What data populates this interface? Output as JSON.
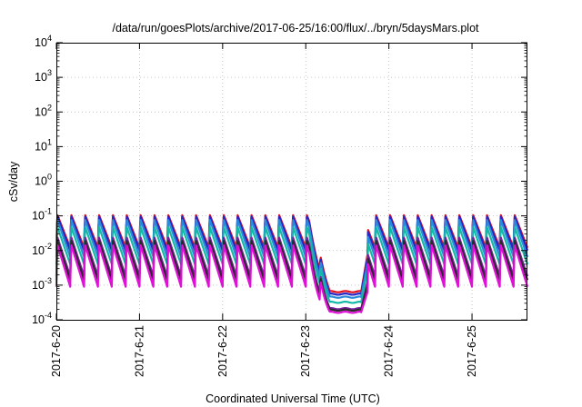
{
  "chart_data": {
    "type": "line",
    "title": "/data/run/goesPlots/archive/2017-06-25/16:00/flux/../bryn/5daysMars.plot",
    "xlabel": "Coordinated Universal Time (UTC)",
    "ylabel": "cSv/day",
    "y_scale": "log",
    "ylim": [
      0.0001,
      10000
    ],
    "y_ticks": [
      {
        "value": 0.0001,
        "base": "10",
        "exp": "-4"
      },
      {
        "value": 0.001,
        "base": "10",
        "exp": "-3"
      },
      {
        "value": 0.01,
        "base": "10",
        "exp": "-2"
      },
      {
        "value": 0.1,
        "base": "10",
        "exp": "-1"
      },
      {
        "value": 1,
        "base": "10",
        "exp": "0"
      },
      {
        "value": 10,
        "base": "10",
        "exp": "1"
      },
      {
        "value": 100,
        "base": "10",
        "exp": "2"
      },
      {
        "value": 1000,
        "base": "10",
        "exp": "3"
      },
      {
        "value": 10000,
        "base": "10",
        "exp": "4"
      }
    ],
    "xlim": [
      "2017-06-20T00:00",
      "2017-06-25T16:00"
    ],
    "x_ticks": [
      "2017-6-20",
      "2017-6-21",
      "2017-6-22",
      "2017-6-23",
      "2017-6-24",
      "2017-6-25"
    ],
    "grid": true,
    "legend": "none",
    "pattern": {
      "sawtooth_period_hours": 4,
      "dip_start": "2017-06-23T02:00",
      "dip_end": "2017-06-23T18:00"
    },
    "series": [
      {
        "color": "#e4111b",
        "peak": 0.11,
        "trough": 0.012,
        "dip_level": 0.00065
      },
      {
        "color": "#2525c8",
        "peak": 0.1,
        "trough": 0.01,
        "dip_level": 0.00055
      },
      {
        "color": "#2b8ad8",
        "peak": 0.08,
        "trough": 0.0065,
        "dip_level": 0.00045
      },
      {
        "color": "#13b8a6",
        "peak": 0.05,
        "trough": 0.004,
        "dip_level": 0.00032
      },
      {
        "color": "#7a1fa0",
        "peak": 0.025,
        "trough": 0.0018,
        "dip_level": 0.00021
      },
      {
        "color": "#2a2a2a",
        "peak": 0.02,
        "trough": 0.0014,
        "dip_level": 0.00019
      },
      {
        "color": "#e010d8",
        "peak": 0.015,
        "trough": 0.0009,
        "dip_level": 0.000165
      }
    ]
  }
}
